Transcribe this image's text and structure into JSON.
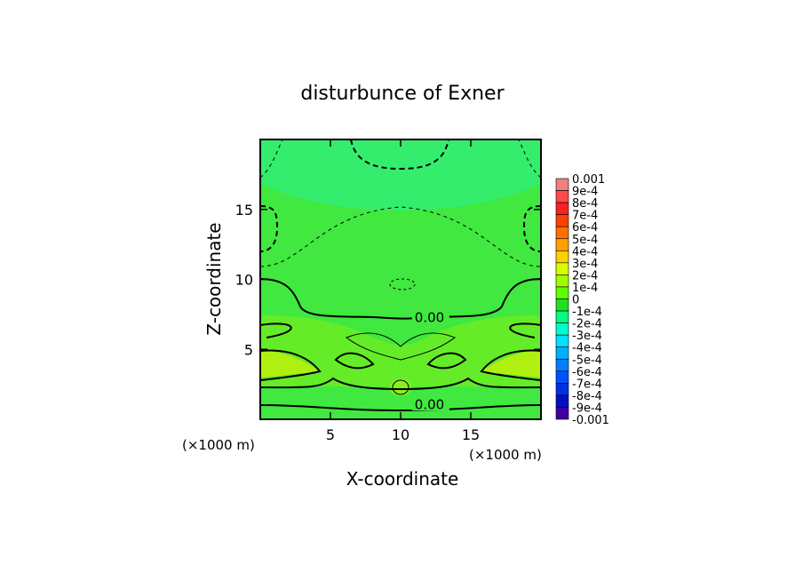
{
  "chart_data": {
    "type": "heatmap",
    "title": "disturbunce of Exner",
    "xlabel": "X-coordinate",
    "ylabel": "Z-coordinate",
    "x_unit_label": "(×1000 m)",
    "z_unit_label": "(×1000 m)",
    "xlim": [
      0,
      20
    ],
    "ylim": [
      0,
      20
    ],
    "x_ticks": [
      {
        "value": 5,
        "label": "5"
      },
      {
        "value": 10,
        "label": "10"
      },
      {
        "value": 15,
        "label": "15"
      }
    ],
    "y_ticks": [
      {
        "value": 5,
        "label": "5"
      },
      {
        "value": 10,
        "label": "10"
      },
      {
        "value": 15,
        "label": "15"
      }
    ],
    "contour_labels": [
      {
        "text": "0.00",
        "x": 11.0,
        "z": 7.2
      },
      {
        "text": "0.00",
        "x": 11.0,
        "z": 1.0
      }
    ],
    "colorbar": {
      "range": [
        -0.001,
        0.001
      ],
      "labels": [
        "0.001",
        "9e-4",
        "8e-4",
        "7e-4",
        "6e-4",
        "5e-4",
        "4e-4",
        "3e-4",
        "2e-4",
        "1e-4",
        "0",
        "-1e-4",
        "-2e-4",
        "-3e-4",
        "-4e-4",
        "-5e-4",
        "-6e-4",
        "-7e-4",
        "-8e-4",
        "-9e-4",
        "-0.001"
      ],
      "colors": [
        "#f08080",
        "#ff4a4a",
        "#ff2020",
        "#ff4000",
        "#ff7000",
        "#ffa000",
        "#ffd000",
        "#d8ff00",
        "#a0ff00",
        "#60ff00",
        "#20e020",
        "#00ff80",
        "#00ffd0",
        "#00e0ff",
        "#00b0ff",
        "#0080ff",
        "#0050ff",
        "#0030e0",
        "#0010c0",
        "#4000a0"
      ]
    }
  }
}
